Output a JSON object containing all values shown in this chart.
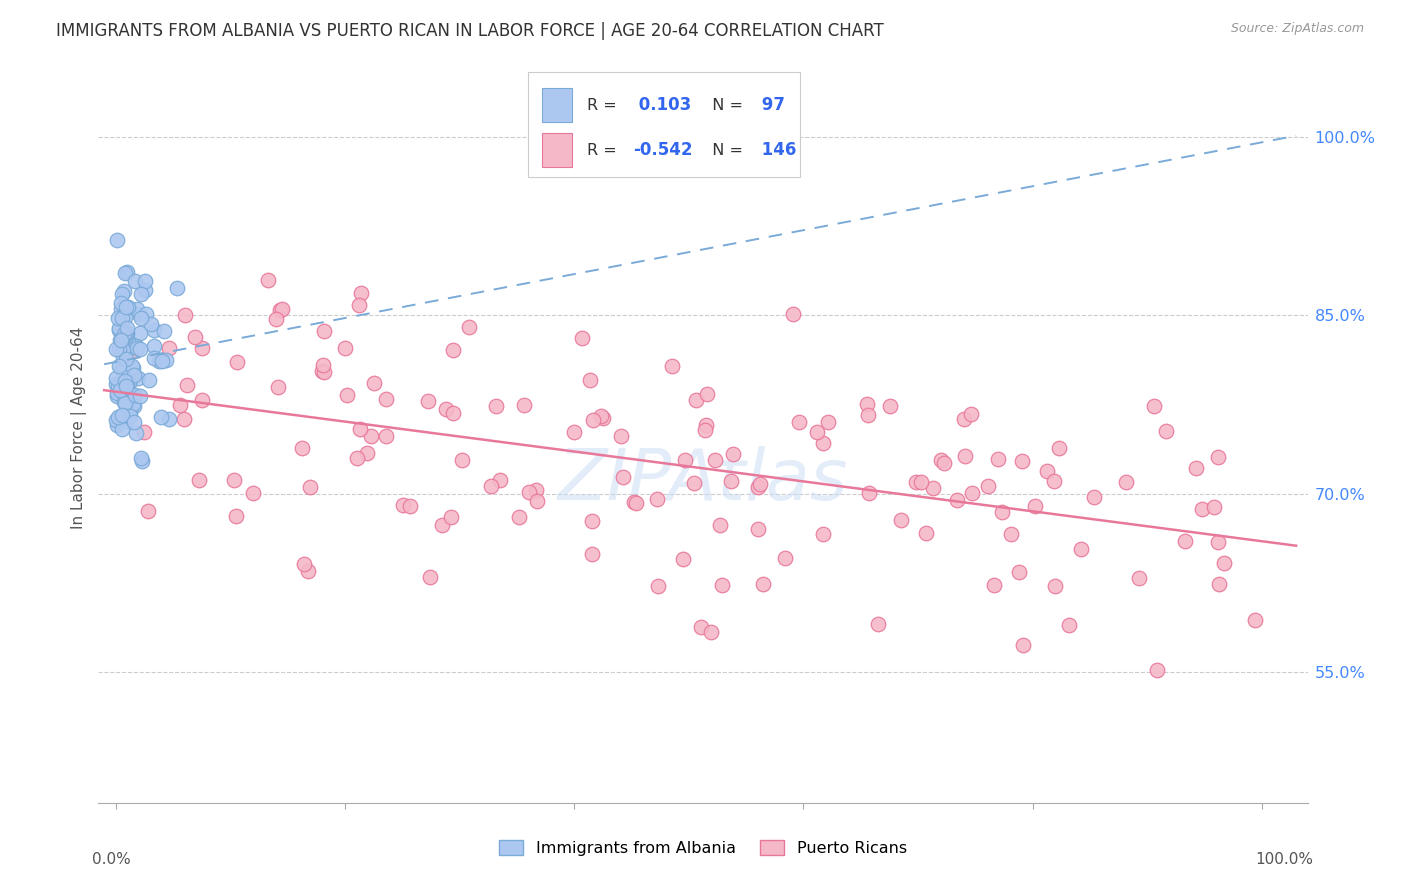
{
  "title": "IMMIGRANTS FROM ALBANIA VS PUERTO RICAN IN LABOR FORCE | AGE 20-64 CORRELATION CHART",
  "source": "Source: ZipAtlas.com",
  "ylabel": "In Labor Force | Age 20-64",
  "albania_R": 0.103,
  "albania_N": 97,
  "puerto_rico_R": -0.542,
  "puerto_rico_N": 146,
  "albania_color": "#adc8f0",
  "albania_edge_color": "#7aaad8",
  "albania_line_color": "#7aaad8",
  "puerto_rico_color": "#f5b8c8",
  "puerto_rico_edge_color": "#e8789a",
  "puerto_rico_line_color": "#e8789a",
  "legend_label_albania": "Immigrants from Albania",
  "legend_label_puerto": "Puerto Ricans",
  "watermark": "ZIPAtlas",
  "background_color": "#ffffff",
  "title_color": "#333333",
  "title_fontsize": 12,
  "right_tick_color": "#4488ff",
  "grid_color": "#cccccc",
  "y_tick_vals": [
    0.55,
    0.7,
    0.85,
    1.0
  ],
  "y_tick_labels": [
    "55.0%",
    "70.0%",
    "85.0%",
    "100.0%"
  ],
  "ylim_min": 0.44,
  "ylim_max": 1.07,
  "xlim_min": -0.015,
  "xlim_max": 1.04
}
